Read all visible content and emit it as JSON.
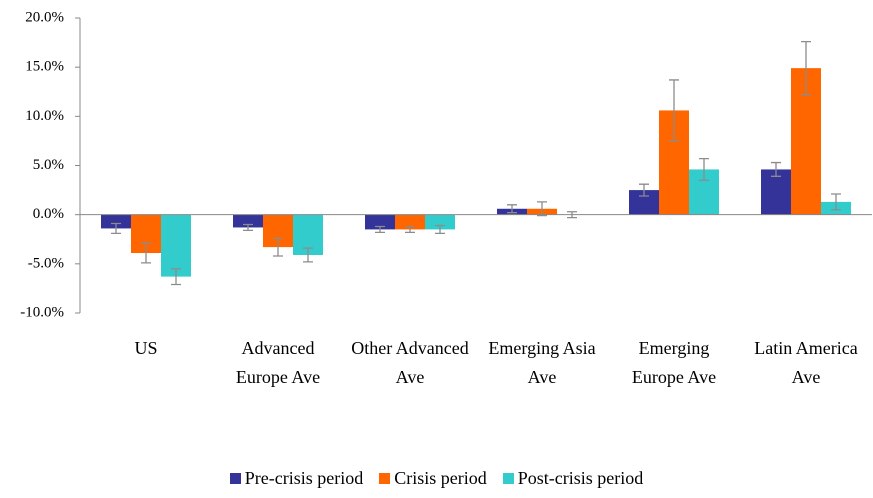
{
  "chart_data": {
    "type": "bar",
    "categories": [
      "US",
      "Advanced Europe Ave",
      "Other Advanced Ave",
      "Emerging Asia Ave",
      "Emerging Europe Ave",
      "Latin America Ave"
    ],
    "series": [
      {
        "name": "Pre-crisis period",
        "color": "#333399",
        "values": [
          -1.4,
          -1.3,
          -1.5,
          0.6,
          2.5,
          4.6
        ],
        "errors": [
          0.5,
          0.3,
          0.3,
          0.4,
          0.6,
          0.7
        ]
      },
      {
        "name": "Crisis period",
        "color": "#ff6600",
        "values": [
          -3.9,
          -3.3,
          -1.5,
          0.6,
          10.6,
          14.9
        ],
        "errors": [
          1.0,
          0.9,
          0.3,
          0.7,
          3.1,
          2.7
        ]
      },
      {
        "name": "Post-crisis period",
        "color": "#33cccc",
        "values": [
          -6.3,
          -4.1,
          -1.5,
          0.0,
          4.6,
          1.3
        ],
        "errors": [
          0.8,
          0.7,
          0.4,
          0.3,
          1.1,
          0.8
        ]
      }
    ],
    "ylim": [
      -10,
      20
    ],
    "yticks": [
      {
        "value": -10,
        "label": "-10.0%"
      },
      {
        "value": -5,
        "label": "-5.0%"
      },
      {
        "value": 0,
        "label": "0.0%"
      },
      {
        "value": 5,
        "label": "5.0%"
      },
      {
        "value": 10,
        "label": "10.0%"
      },
      {
        "value": 15,
        "label": "15.0%"
      },
      {
        "value": 20,
        "label": "20.0%"
      }
    ],
    "grid": false
  }
}
